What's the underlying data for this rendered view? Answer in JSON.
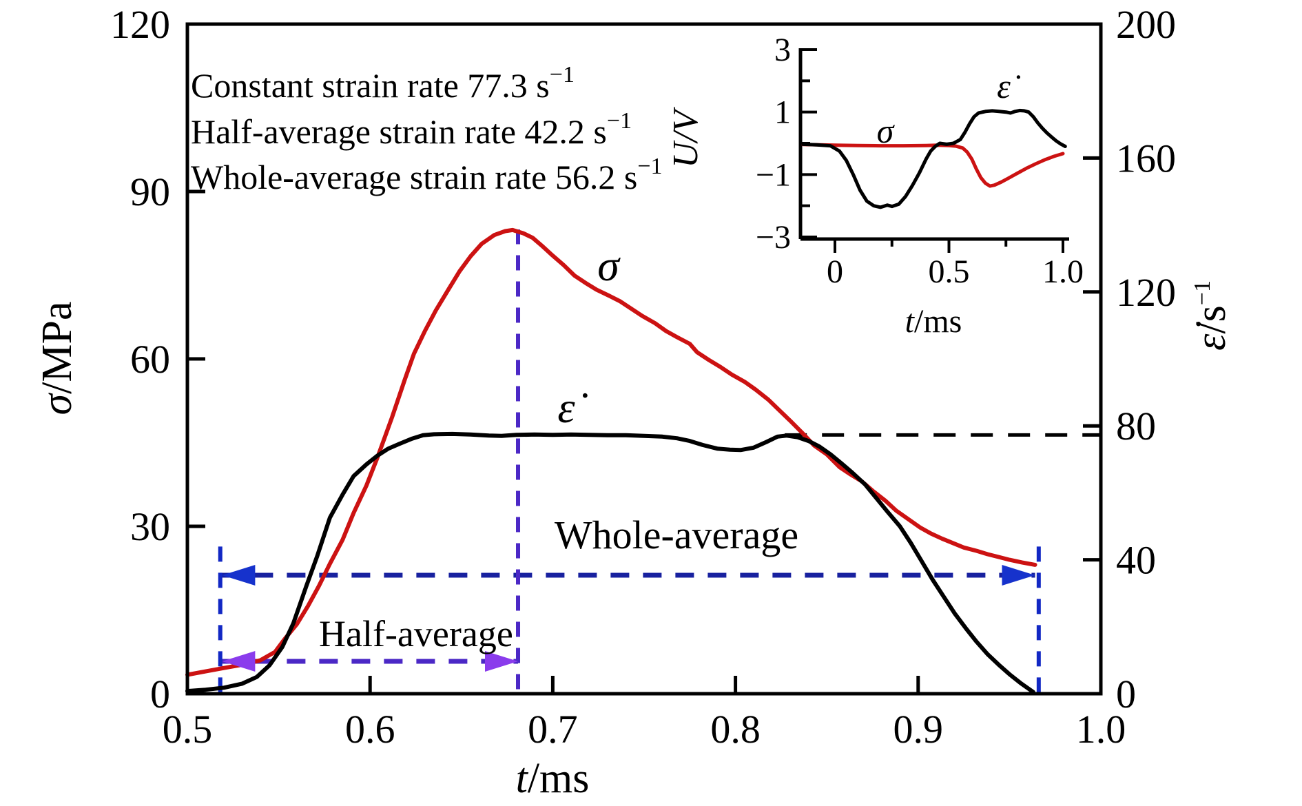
{
  "chart_data": [
    {
      "id": "main",
      "type": "line",
      "xlabel": {
        "sym": "t",
        "rest": "/ms"
      },
      "ylabel_left": {
        "sym": "σ",
        "rest": "/MPa"
      },
      "ylabel_right": {
        "sym": "ε̇",
        "rest": "/s",
        "sup": "−1"
      },
      "xlim": [
        0.5,
        1.0
      ],
      "ylim_left": [
        0,
        120
      ],
      "ylim_right": [
        0,
        200
      ],
      "grid": false,
      "xticks": [
        0.5,
        0.6,
        0.7,
        0.8,
        0.9,
        1.0
      ],
      "xtick_labels": [
        "0.5",
        "0.6",
        "0.7",
        "0.8",
        "0.9",
        "1.0"
      ],
      "yticks_left": [
        0,
        30,
        60,
        90,
        120
      ],
      "ytick_labels_left": [
        "0",
        "30",
        "60",
        "90",
        "120"
      ],
      "yticks_right": [
        0,
        40,
        80,
        120,
        160,
        200
      ],
      "ytick_labels_right": [
        "0",
        "40",
        "80",
        "120",
        "160",
        "200"
      ],
      "legend": [
        {
          "text": "Constant strain rate 77.3 s",
          "sup": "−1",
          "color": "#111111"
        },
        {
          "text": "Half-average strain rate 42.2 s",
          "sup": "−1",
          "color": "#b152f0"
        },
        {
          "text": "Whole-average strain rate 56.2 s",
          "sup": "−1",
          "color": "#2240e0"
        }
      ],
      "series": [
        {
          "name": "stress-sigma",
          "label": "σ",
          "axis": "left",
          "color": "#cc1212",
          "x": [
            0.5,
            0.51,
            0.52,
            0.53,
            0.54,
            0.548,
            0.553,
            0.56,
            0.566,
            0.572,
            0.578,
            0.585,
            0.591,
            0.598,
            0.604,
            0.612,
            0.619,
            0.624,
            0.63,
            0.636,
            0.643,
            0.649,
            0.655,
            0.661,
            0.668,
            0.674,
            0.678,
            0.684,
            0.689,
            0.694,
            0.699,
            0.706,
            0.712,
            0.718,
            0.724,
            0.731,
            0.737,
            0.743,
            0.749,
            0.756,
            0.762,
            0.768,
            0.775,
            0.779,
            0.785,
            0.792,
            0.798,
            0.805,
            0.811,
            0.818,
            0.824,
            0.83,
            0.837,
            0.843,
            0.85,
            0.857,
            0.863,
            0.869,
            0.875,
            0.882,
            0.888,
            0.895,
            0.901,
            0.907,
            0.913,
            0.919,
            0.925,
            0.932,
            0.938,
            0.944,
            0.95,
            0.957,
            0.964
          ],
          "y": [
            3.4,
            4.0,
            4.6,
            5.2,
            6.0,
            7.5,
            9.7,
            12.5,
            15.7,
            19.3,
            23.3,
            27.6,
            32.4,
            37.3,
            42.3,
            49.5,
            56.3,
            60.9,
            65.0,
            68.7,
            72.5,
            75.7,
            78.4,
            80.6,
            82.2,
            82.9,
            83.1,
            82.5,
            81.7,
            80.3,
            78.8,
            76.8,
            74.9,
            73.6,
            72.4,
            71.3,
            70.3,
            69.0,
            67.7,
            66.4,
            65.0,
            63.9,
            62.7,
            61.2,
            59.9,
            58.5,
            57.2,
            55.9,
            54.5,
            52.7,
            50.8,
            48.9,
            46.6,
            44.5,
            42.9,
            40.6,
            39.3,
            38.1,
            36.4,
            34.6,
            32.8,
            31.2,
            29.8,
            28.7,
            27.8,
            27.0,
            26.2,
            25.6,
            25.0,
            24.5,
            24.0,
            23.5,
            23.1
          ]
        },
        {
          "name": "strain-rate",
          "label": "ε̇",
          "axis": "right",
          "color": "#000000",
          "x": [
            0.5,
            0.51,
            0.52,
            0.53,
            0.538,
            0.545,
            0.552,
            0.558,
            0.565,
            0.571,
            0.578,
            0.585,
            0.591,
            0.598,
            0.604,
            0.61,
            0.616,
            0.623,
            0.629,
            0.635,
            0.645,
            0.655,
            0.665,
            0.672,
            0.68,
            0.69,
            0.7,
            0.71,
            0.72,
            0.73,
            0.74,
            0.75,
            0.76,
            0.768,
            0.775,
            0.782,
            0.79,
            0.797,
            0.803,
            0.81,
            0.817,
            0.823,
            0.828,
            0.834,
            0.84,
            0.846,
            0.852,
            0.858,
            0.864,
            0.871,
            0.877,
            0.883,
            0.89,
            0.896,
            0.902,
            0.908,
            0.914,
            0.92,
            0.926,
            0.932,
            0.938,
            0.944,
            0.95,
            0.956,
            0.963
          ],
          "y": [
            0.8,
            1.2,
            1.8,
            3.0,
            5.0,
            8.5,
            14.0,
            21.0,
            32.0,
            41.0,
            52.6,
            59.5,
            65.0,
            68.5,
            71.1,
            73.2,
            74.6,
            76.2,
            77.2,
            77.5,
            77.6,
            77.4,
            77.1,
            77.0,
            77.3,
            77.4,
            77.3,
            77.4,
            77.3,
            77.2,
            77.2,
            77.0,
            76.8,
            76.3,
            75.5,
            74.3,
            73.2,
            72.9,
            72.8,
            73.5,
            75.2,
            76.8,
            77.1,
            76.6,
            75.5,
            73.8,
            71.5,
            68.8,
            66.0,
            62.5,
            58.5,
            54.5,
            50.0,
            45.0,
            39.5,
            34.0,
            29.0,
            24.0,
            19.6,
            15.5,
            11.8,
            8.7,
            5.8,
            3.2,
            0.5
          ]
        }
      ],
      "annotations": {
        "constant_rate_line": {
          "value": 77.3,
          "axis": "right",
          "t_from": 0.827,
          "t_to": 1.0,
          "color": "#000000"
        },
        "whole_average": {
          "text": "Whole-average",
          "text_color": "#2240e0",
          "level": 35.4,
          "axis": "right",
          "t_from": 0.519,
          "t_to": 0.964,
          "dash_color": "#18219f",
          "arrow_color": "#1632cc"
        },
        "half_average": {
          "text": "Half-average",
          "text_color": "#9d4cf0",
          "level": 5.8,
          "axis": "left",
          "t_from": 0.519,
          "t_to": 0.681,
          "dash_color": "#4b28c6",
          "arrow_color": "#8a3cec"
        },
        "verticals": [
          {
            "t": 0.518,
            "sigma_from": 0.2,
            "sigma_to": 26.8,
            "color": "#1228c4"
          },
          {
            "t": 0.681,
            "sigma_from": 0.8,
            "sigma_to": 83.2,
            "color": "#4b28c6"
          },
          {
            "t": 0.966,
            "sigma_from": 0.2,
            "sigma_to": 27.2,
            "color": "#1228c4"
          }
        ]
      }
    },
    {
      "id": "inset",
      "type": "line",
      "xlabel": {
        "sym": "t",
        "rest": "/ms"
      },
      "ylabel": "U/V",
      "xlim": [
        -0.15,
        1.03
      ],
      "ylim": [
        -3,
        3
      ],
      "grid": false,
      "xticks": [
        0,
        0.5,
        1.0
      ],
      "xtick_labels": [
        "0",
        "0.5",
        "1.0"
      ],
      "xticks_minor": [
        0.25,
        0.75
      ],
      "yticks": [
        3,
        1,
        -1,
        -3
      ],
      "ytick_labels": [
        "3",
        "1",
        "−1",
        "−3"
      ],
      "yticks_minor": [
        2,
        0,
        -2
      ],
      "series": [
        {
          "name": "inset-stress-sigma",
          "label": "σ",
          "color": "#cc1212",
          "x": [
            -0.14,
            0.0,
            0.1,
            0.2,
            0.3,
            0.4,
            0.45,
            0.5,
            0.53,
            0.56,
            0.58,
            0.6,
            0.62,
            0.64,
            0.66,
            0.68,
            0.7,
            0.73,
            0.76,
            0.8,
            0.84,
            0.88,
            0.92,
            0.96,
            1.0
          ],
          "y": [
            -0.04,
            -0.06,
            -0.07,
            -0.08,
            -0.08,
            -0.07,
            -0.06,
            -0.07,
            -0.09,
            -0.15,
            -0.28,
            -0.5,
            -0.82,
            -1.1,
            -1.28,
            -1.37,
            -1.34,
            -1.24,
            -1.12,
            -0.96,
            -0.8,
            -0.66,
            -0.53,
            -0.42,
            -0.33
          ]
        },
        {
          "name": "inset-strain-rate",
          "label": "ε̇",
          "color": "#000000",
          "x": [
            -0.14,
            -0.08,
            -0.02,
            0.02,
            0.05,
            0.08,
            0.11,
            0.14,
            0.17,
            0.2,
            0.23,
            0.25,
            0.28,
            0.31,
            0.34,
            0.37,
            0.4,
            0.42,
            0.44,
            0.46,
            0.49,
            0.52,
            0.55,
            0.57,
            0.59,
            0.61,
            0.63,
            0.66,
            0.69,
            0.72,
            0.75,
            0.77,
            0.79,
            0.81,
            0.83,
            0.85,
            0.87,
            0.89,
            0.91,
            0.93,
            0.95,
            0.97,
            0.99,
            1.01
          ],
          "y": [
            -0.03,
            -0.05,
            -0.08,
            -0.25,
            -0.55,
            -1.0,
            -1.5,
            -1.85,
            -2.0,
            -2.05,
            -1.98,
            -2.02,
            -1.95,
            -1.7,
            -1.35,
            -0.95,
            -0.5,
            -0.25,
            -0.1,
            0.0,
            -0.03,
            0.0,
            0.12,
            0.35,
            0.62,
            0.85,
            0.97,
            1.02,
            1.04,
            1.02,
            1.0,
            0.97,
            1.02,
            1.05,
            1.04,
            1.0,
            0.85,
            0.65,
            0.48,
            0.33,
            0.2,
            0.08,
            -0.02,
            -0.1
          ]
        }
      ]
    }
  ]
}
